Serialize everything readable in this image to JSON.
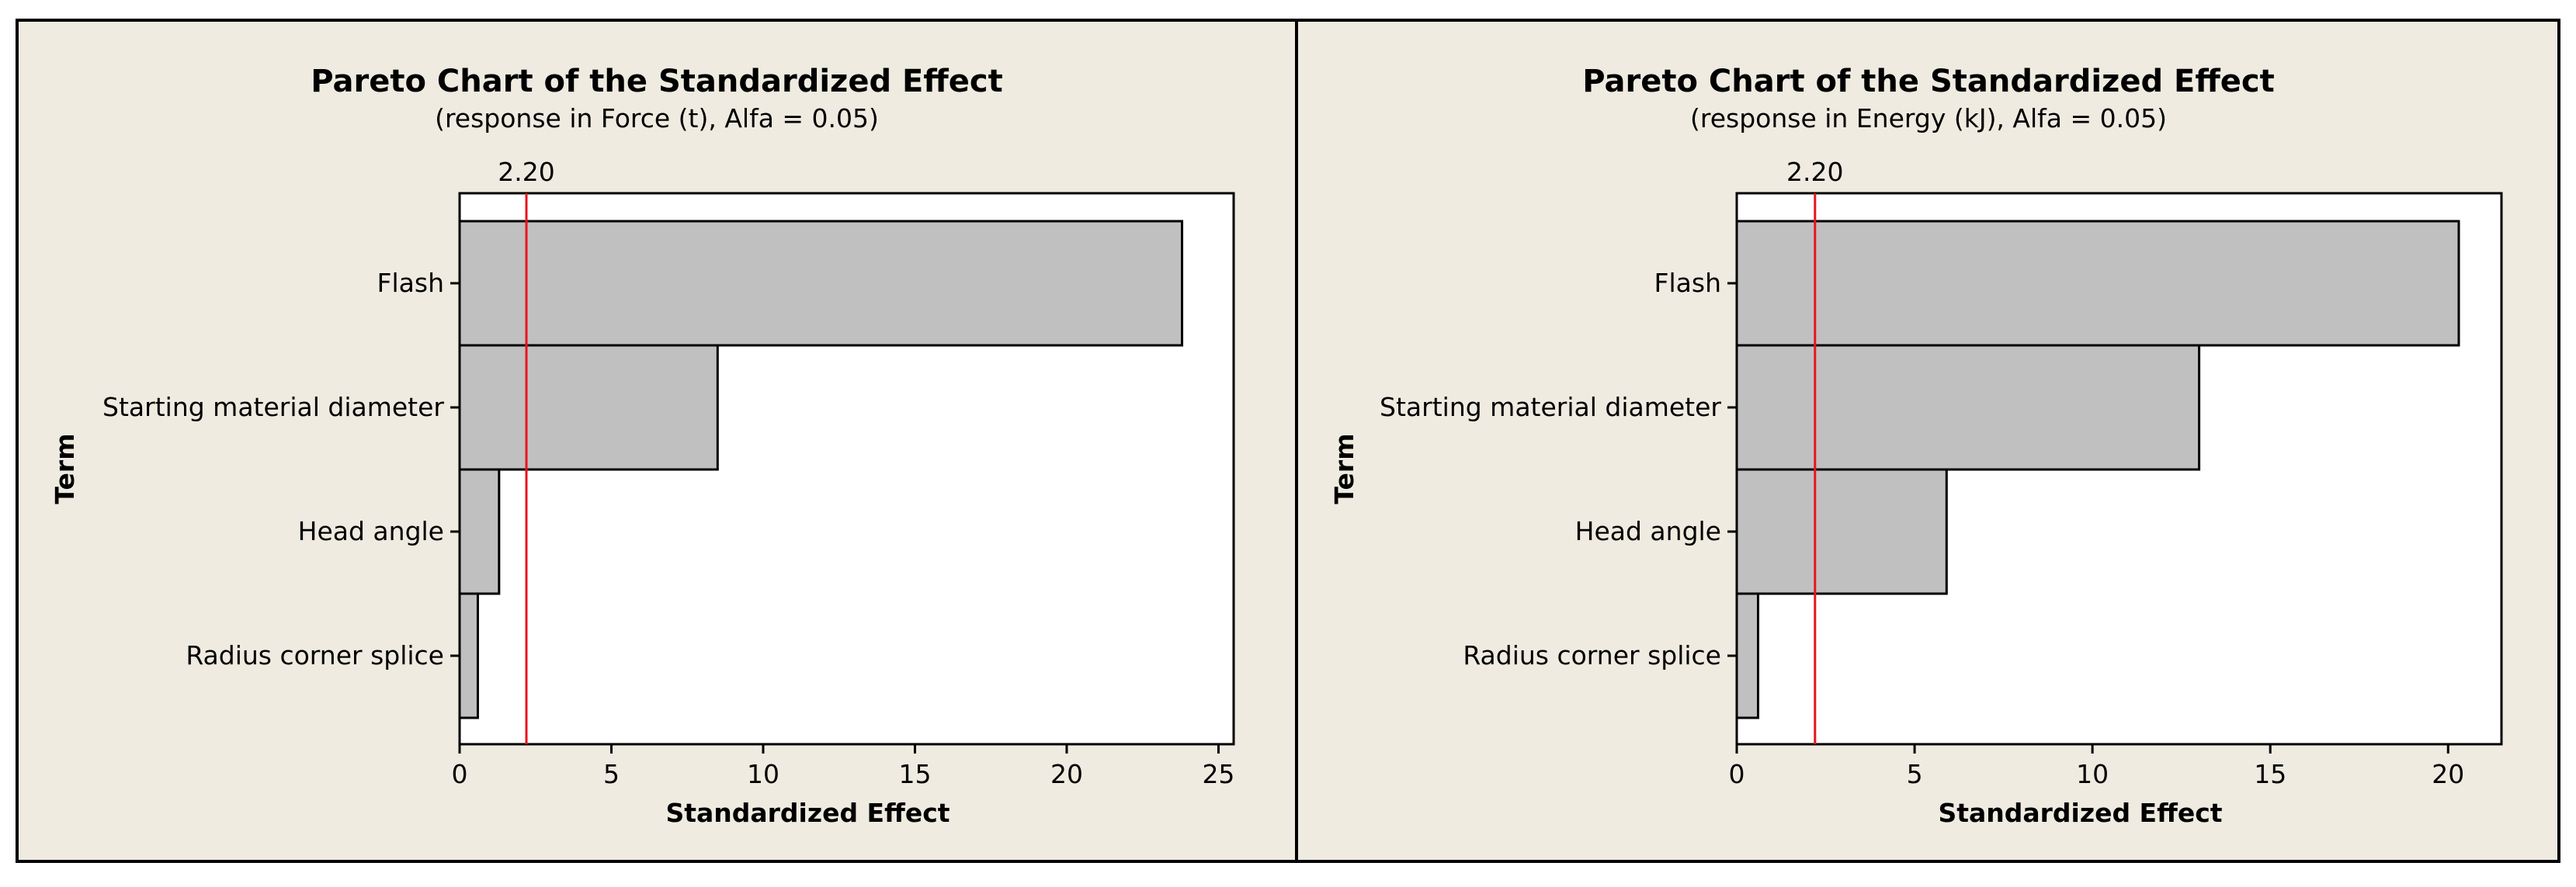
{
  "colors": {
    "panel_background": "#efebe1",
    "plot_background": "#ffffff",
    "bar_fill": "#c0c0c0",
    "reference_line": "#e8141c"
  },
  "chart_data": [
    {
      "type": "bar",
      "orientation": "horizontal",
      "title": "Pareto Chart of the Standardized Effect",
      "subtitle": "(response in Force (t), Alfa =  0.05)",
      "xlabel": "Standardized Effect",
      "ylabel": "Term",
      "categories": [
        "Flash",
        "Starting material diameter",
        "Head angle",
        "Radius corner splice"
      ],
      "values": [
        23.8,
        8.5,
        1.3,
        0.6
      ],
      "xlim": [
        0,
        25.5
      ],
      "xticks": [
        0,
        5,
        10,
        15,
        20,
        25
      ],
      "reference_line": {
        "value": 2.2,
        "label": "2.20"
      }
    },
    {
      "type": "bar",
      "orientation": "horizontal",
      "title": "Pareto Chart of the Standardized Effect",
      "subtitle": "(response in Energy (kJ), Alfa =  0.05)",
      "xlabel": "Standardized Effect",
      "ylabel": "Term",
      "categories": [
        "Flash",
        "Starting material diameter",
        "Head angle",
        "Radius corner splice"
      ],
      "values": [
        20.3,
        13.0,
        5.9,
        0.6
      ],
      "xlim": [
        0,
        21.5
      ],
      "xticks": [
        0,
        5,
        10,
        15,
        20
      ],
      "reference_line": {
        "value": 2.2,
        "label": "2.20"
      }
    }
  ]
}
